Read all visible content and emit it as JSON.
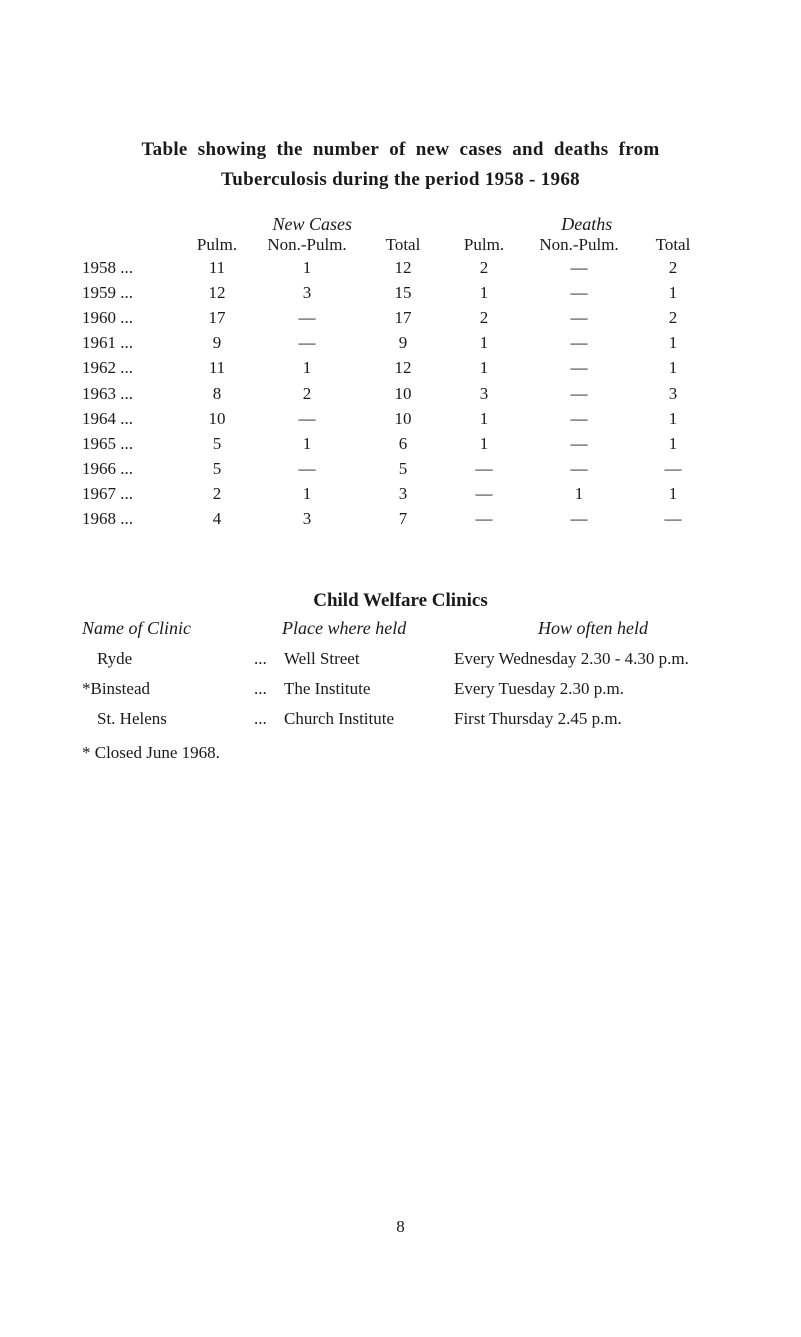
{
  "title": {
    "line1_a": "Table",
    "line1_b": "showing",
    "line1_c": "the",
    "line1_d": "number",
    "line1_e": "of",
    "line1_f": "new",
    "line1_g": "cases",
    "line1_h": "and",
    "line1_i": "deaths",
    "line1_j": "from",
    "line2_a": "Tuberculosis during the period",
    "line2_b": "1958 - 1968"
  },
  "tb_table": {
    "group_headers": {
      "new_cases": "New Cases",
      "deaths": "Deaths"
    },
    "column_headers": {
      "pulm": "Pulm.",
      "nonpulm": "Non.-Pulm.",
      "total": "Total"
    },
    "rows": [
      {
        "year": "1958",
        "dots": "...",
        "pulm1": "11",
        "nonpulm1": "1",
        "total1": "12",
        "pulm2": "2",
        "nonpulm2": "—",
        "total2": "2"
      },
      {
        "year": "1959",
        "dots": "...",
        "pulm1": "12",
        "nonpulm1": "3",
        "total1": "15",
        "pulm2": "1",
        "nonpulm2": "—",
        "total2": "1"
      },
      {
        "year": "1960",
        "dots": "...",
        "pulm1": "17",
        "nonpulm1": "—",
        "total1": "17",
        "pulm2": "2",
        "nonpulm2": "—",
        "total2": "2"
      },
      {
        "year": "1961",
        "dots": "...",
        "pulm1": "9",
        "nonpulm1": "—",
        "total1": "9",
        "pulm2": "1",
        "nonpulm2": "—",
        "total2": "1"
      },
      {
        "year": "1962",
        "dots": "...",
        "pulm1": "11",
        "nonpulm1": "1",
        "total1": "12",
        "pulm2": "1",
        "nonpulm2": "—",
        "total2": "1"
      },
      {
        "year": "1963",
        "dots": "...",
        "pulm1": "8",
        "nonpulm1": "2",
        "total1": "10",
        "pulm2": "3",
        "nonpulm2": "—",
        "total2": "3"
      },
      {
        "year": "1964",
        "dots": "...",
        "pulm1": "10",
        "nonpulm1": "—",
        "total1": "10",
        "pulm2": "1",
        "nonpulm2": "—",
        "total2": "1"
      },
      {
        "year": "1965",
        "dots": "...",
        "pulm1": "5",
        "nonpulm1": "1",
        "total1": "6",
        "pulm2": "1",
        "nonpulm2": "—",
        "total2": "1"
      },
      {
        "year": "1966",
        "dots": "...",
        "pulm1": "5",
        "nonpulm1": "—",
        "total1": "5",
        "pulm2": "—",
        "nonpulm2": "—",
        "total2": "—"
      },
      {
        "year": "1967",
        "dots": "...",
        "pulm1": "2",
        "nonpulm1": "1",
        "total1": "3",
        "pulm2": "—",
        "nonpulm2": "1",
        "total2": "1"
      },
      {
        "year": "1968",
        "dots": "...",
        "pulm1": "4",
        "nonpulm1": "3",
        "total1": "7",
        "pulm2": "—",
        "nonpulm2": "—",
        "total2": "—"
      }
    ]
  },
  "clinics": {
    "title": "Child Welfare Clinics",
    "headers": {
      "name": "Name of Clinic",
      "place": "Place where held",
      "how": "How often held"
    },
    "dots": "...",
    "rows": [
      {
        "name": "Ryde",
        "indent": true,
        "place": "Well Street",
        "how": "Every Wednesday 2.30 - 4.30 p.m."
      },
      {
        "name": "*Binstead",
        "indent": false,
        "place": "The Institute",
        "how": "Every Tuesday 2.30 p.m."
      },
      {
        "name": "St. Helens",
        "indent": true,
        "place": "Church Institute",
        "how": "First Thursday 2.45 p.m."
      }
    ],
    "footnote": "* Closed June 1968."
  },
  "page_number": "8",
  "colors": {
    "background": "#ffffff",
    "text": "#1a1a1a"
  }
}
